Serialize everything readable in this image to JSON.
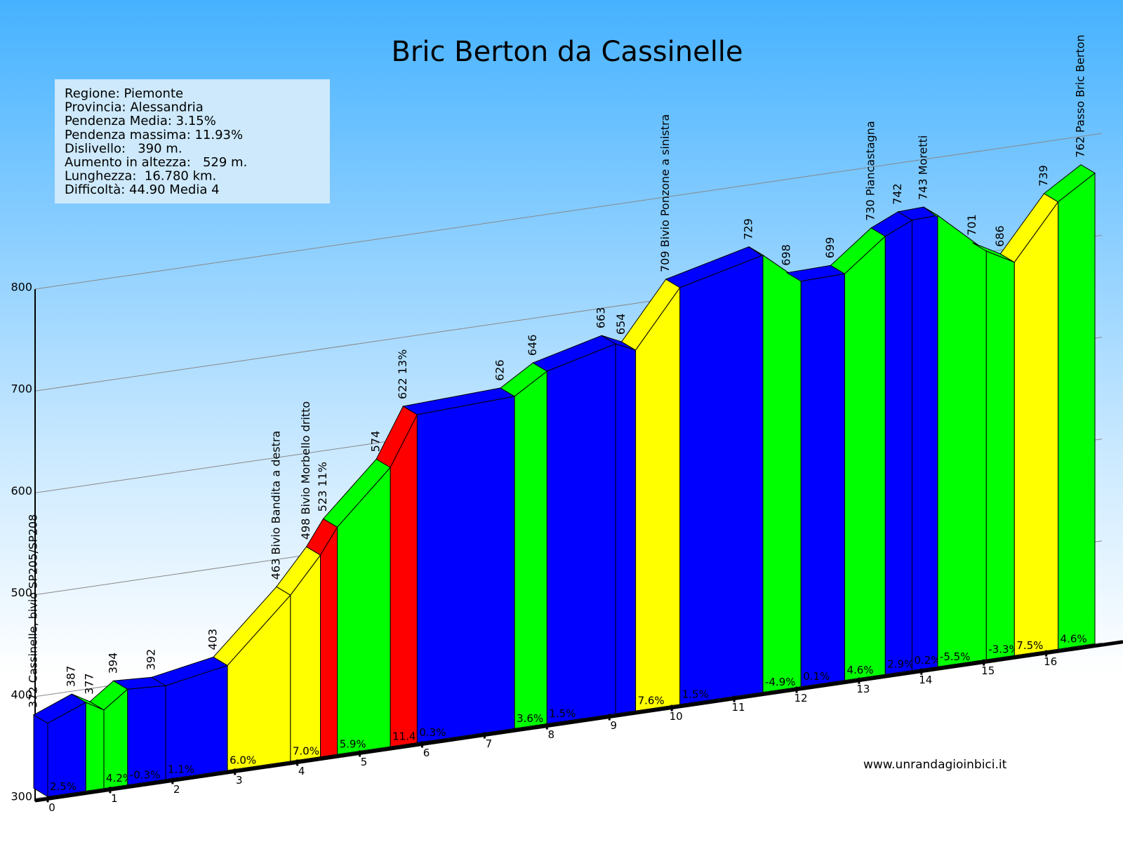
{
  "chart_data": {
    "type": "profile",
    "title": "Bric Berton da Cassinelle",
    "info": [
      "Regione: Piemonte",
      "Provincia: Alessandria",
      "Pendenza Media: 3.15%",
      "Pendenza massima: 11.93%",
      "Dislivello:   390 m.",
      "Aumento in altezza:   529 m.",
      "Lunghezza:  16.780 km.",
      "Difficoltà: 44.90 Media 4"
    ],
    "credit": "www.unrandagioinbici.it",
    "x": [
      0,
      0.61,
      0.9,
      1.28,
      1.89,
      2.88,
      3.89,
      4.37,
      4.64,
      5.49,
      5.92,
      7.48,
      8.0,
      9.1,
      9.42,
      10.13,
      11.46,
      12.07,
      12.77,
      13.42,
      13.85,
      14.26,
      15.04,
      15.49,
      16.19,
      16.78
    ],
    "values": [
      372,
      387,
      377,
      394,
      392,
      403,
      463,
      498,
      523,
      574,
      622,
      626,
      646,
      663,
      654,
      709,
      729,
      698,
      699,
      730,
      742,
      743,
      701,
      686,
      739,
      762
    ],
    "value_labels": [
      "372 Cassinelle, bivio SP205/SP208",
      "387",
      "377",
      "394",
      "392",
      "403",
      "463 Bivio Bandita a destra",
      "498 Bivio Morbello dritto",
      "523 11%",
      "574",
      "622 13%",
      "626",
      "646",
      "663",
      "654",
      "709 Bivio Ponzone a sinistra",
      "729",
      "698",
      "699",
      "730 Piancastagna",
      "742",
      "743 Moretti",
      "701",
      "686",
      "739",
      "762 Passo Bric Berton"
    ],
    "grade_labels": [
      "2.5%",
      null,
      "4.2%",
      "-0.3%",
      "1.1%",
      "6.0%",
      "7.0%",
      null,
      "5.9%",
      "11.4",
      "0.3%",
      "3.6%",
      "1.5%",
      null,
      "7.6%",
      "1.5%",
      "-4.9%",
      "0.1%",
      "4.6%",
      "2.9%",
      "0.2%",
      "-5.5%",
      "-3.3%",
      "7.5%",
      "4.6%"
    ],
    "colors": [
      "#0000ff",
      "#00ff00",
      "#00ff00",
      "#0000ff",
      "#0000ff",
      "#ffff00",
      "#ffff00",
      "#ff0000",
      "#00ff00",
      "#ff0000",
      "#0000ff",
      "#00ff00",
      "#0000ff",
      "#0000ff",
      "#ffff00",
      "#0000ff",
      "#00ff00",
      "#0000ff",
      "#00ff00",
      "#0000ff",
      "#0000ff",
      "#00ff00",
      "#00ff00",
      "#ffff00",
      "#00ff00"
    ],
    "xlim": [
      0,
      16.78
    ],
    "xticks": [
      0,
      1,
      2,
      3,
      4,
      5,
      6,
      7,
      8,
      9,
      10,
      11,
      12,
      13,
      14,
      15,
      16
    ],
    "ylim": [
      300,
      800
    ],
    "yticks": [
      300,
      400,
      500,
      600,
      700,
      800
    ],
    "grid": true
  }
}
